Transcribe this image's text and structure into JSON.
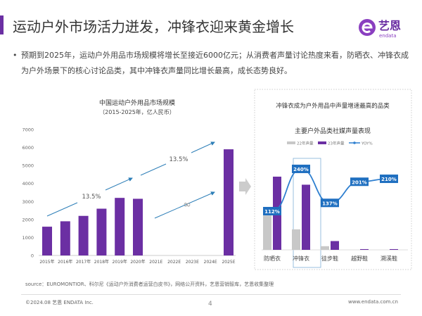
{
  "header": {
    "title": "运动户外市场活力迸发，冲锋衣迎来黄金增长",
    "logo_text": "艺恩",
    "logo_sub": "endata"
  },
  "bullet": {
    "marker": "•",
    "text": "预期到2025年，运动户外用品市场规模将增长至接近6000亿元；从消费者声量讨论热度来看，防晒衣、冲锋衣成为户外场景下的核心讨论品类，其中冲锋衣声量同比增长最高，成长态势良好。"
  },
  "chart_data": [
    {
      "type": "bar",
      "title": "中国运动户外用品市场规模",
      "subtitle": "（2015-2025年，亿人民币）",
      "categories": [
        "2015年",
        "2016年",
        "2017年",
        "2018年",
        "2019年",
        "2020年",
        "2021E",
        "2022E",
        "2023E",
        "2024E",
        "2025E"
      ],
      "values": [
        1600,
        1900,
        2200,
        2600,
        3200,
        3150,
        null,
        null,
        null,
        null,
        5900
      ],
      "ylim": [
        0,
        7000
      ],
      "yticks": [
        0,
        1000,
        2000,
        3000,
        4000,
        5000,
        6000,
        7000
      ],
      "bar_color": "#6b2fa3",
      "annotations": [
        {
          "text": "13.5%"
        },
        {
          "text": "13.5%"
        },
        {
          "text": "∞"
        }
      ],
      "arrow_color": "#2e7fb8"
    },
    {
      "type": "bar+line",
      "panel_title": "冲锋衣成为户外用品中声量增速最高的品类",
      "title": "主要户外品类社媒声量表现",
      "categories": [
        "防晒衣",
        "冲锋衣",
        "徒步鞋",
        "越野鞋",
        "溯溪鞋"
      ],
      "series": [
        {
          "name": "22年声量",
          "type": "bar",
          "color": "#c8c8c8",
          "values": [
            47,
            28,
            5,
            0,
            0
          ]
        },
        {
          "name": "23年声量",
          "type": "bar",
          "color": "#6b2fa3",
          "values": [
            100,
            89,
            12,
            1,
            1
          ]
        },
        {
          "name": "YOY%",
          "type": "line",
          "color": "#2e7fd0",
          "values": [
            112,
            240,
            137,
            201,
            210
          ],
          "labels": [
            "112%",
            "240%",
            "137%",
            "201%",
            "210%"
          ]
        }
      ],
      "highlight": "冲锋衣"
    }
  ],
  "footer": {
    "source": "source：EUROMONTIOR、科尔尼《运动户外消费者运营白皮书》，网络公开资料，艺恩营销智库，艺恩收集整理",
    "copyright": "©2024.08 艺恩 ENDATA Inc.",
    "page": "4",
    "website": "www.endata.com.cn"
  }
}
